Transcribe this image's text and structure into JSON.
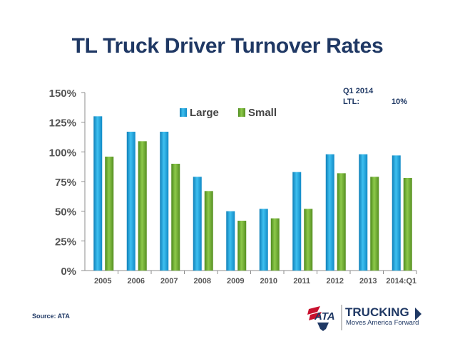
{
  "slide": {
    "title": "TL Truck Driver Turnover Rates",
    "note": {
      "period": "Q1 2014",
      "label": "LTL:",
      "value": "10%"
    },
    "source": "Source: ATA"
  },
  "logo": {
    "mark": "ATA",
    "name": "TRUCKING",
    "tagline": "Moves America Forward"
  },
  "colors": {
    "large": "#1fa6e0",
    "small": "#6aaa2f",
    "text": "#1f3864",
    "axis": "#555555"
  },
  "chart_data": {
    "type": "bar",
    "title": "TL Truck Driver Turnover Rates",
    "categories": [
      "2005",
      "2006",
      "2007",
      "2008",
      "2009",
      "2010",
      "2011",
      "2012",
      "2013",
      "2014:Q1"
    ],
    "series": [
      {
        "name": "Large",
        "values": [
          130,
          117,
          117,
          79,
          50,
          52,
          83,
          98,
          98,
          97
        ]
      },
      {
        "name": "Small",
        "values": [
          96,
          109,
          90,
          67,
          42,
          44,
          52,
          82,
          79,
          78
        ]
      }
    ],
    "ylim": [
      0,
      150
    ],
    "yticks": [
      0,
      25,
      50,
      75,
      100,
      125,
      150
    ],
    "ytick_labels": [
      "0%",
      "25%",
      "50%",
      "75%",
      "100%",
      "125%",
      "150%"
    ],
    "xlabel": "",
    "ylabel": "",
    "legend": "top-center"
  }
}
